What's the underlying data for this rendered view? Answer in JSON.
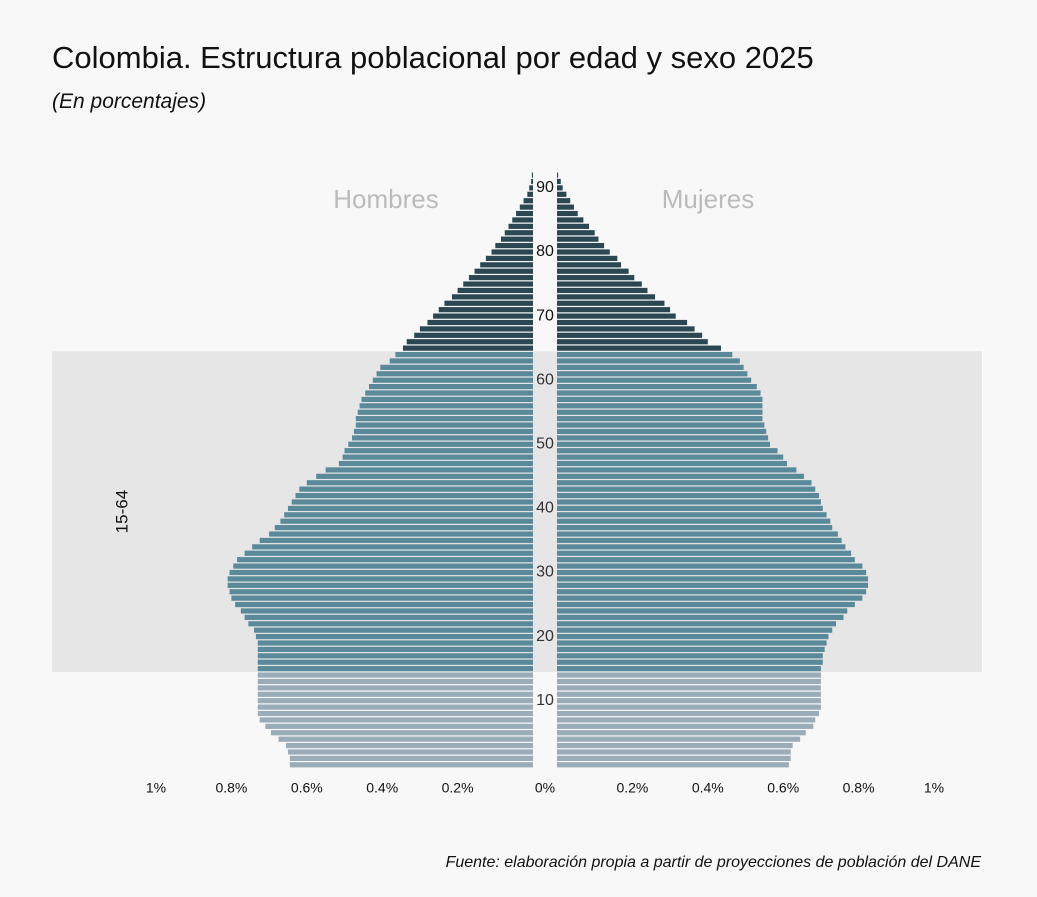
{
  "title": "Colombia. Estructura poblacional por edad y sexo 2025",
  "subtitle": "(En porcentajes)",
  "caption": "Fuente: elaboración propia a partir de proyecciones de población del DANE",
  "chart_data": {
    "type": "bar",
    "orientation": "horizontal",
    "subtype": "population-pyramid",
    "ages": [
      0,
      1,
      2,
      3,
      4,
      5,
      6,
      7,
      8,
      9,
      10,
      11,
      12,
      13,
      14,
      15,
      16,
      17,
      18,
      19,
      20,
      21,
      22,
      23,
      24,
      25,
      26,
      27,
      28,
      29,
      30,
      31,
      32,
      33,
      34,
      35,
      36,
      37,
      38,
      39,
      40,
      41,
      42,
      43,
      44,
      45,
      46,
      47,
      48,
      49,
      50,
      51,
      52,
      53,
      54,
      55,
      56,
      57,
      58,
      59,
      60,
      61,
      62,
      63,
      64,
      65,
      66,
      67,
      68,
      69,
      70,
      71,
      72,
      73,
      74,
      75,
      76,
      77,
      78,
      79,
      80,
      81,
      82,
      83,
      84,
      85,
      86,
      87,
      88,
      89,
      90,
      91,
      92
    ],
    "series": [
      {
        "name": "Hombres",
        "values": [
          0.645,
          0.645,
          0.65,
          0.655,
          0.675,
          0.695,
          0.71,
          0.725,
          0.73,
          0.73,
          0.73,
          0.73,
          0.73,
          0.73,
          0.73,
          0.73,
          0.73,
          0.73,
          0.73,
          0.73,
          0.735,
          0.74,
          0.755,
          0.765,
          0.775,
          0.79,
          0.8,
          0.805,
          0.81,
          0.81,
          0.805,
          0.795,
          0.785,
          0.765,
          0.745,
          0.725,
          0.7,
          0.685,
          0.67,
          0.66,
          0.65,
          0.64,
          0.63,
          0.62,
          0.6,
          0.575,
          0.55,
          0.515,
          0.505,
          0.5,
          0.49,
          0.48,
          0.475,
          0.47,
          0.47,
          0.465,
          0.46,
          0.455,
          0.445,
          0.435,
          0.425,
          0.415,
          0.405,
          0.38,
          0.365,
          0.345,
          0.335,
          0.315,
          0.3,
          0.28,
          0.265,
          0.25,
          0.235,
          0.215,
          0.2,
          0.185,
          0.17,
          0.155,
          0.14,
          0.125,
          0.11,
          0.1,
          0.085,
          0.075,
          0.065,
          0.055,
          0.045,
          0.035,
          0.025,
          0.015,
          0.01,
          0.005,
          0.003
        ]
      },
      {
        "name": "Mujeres",
        "values": [
          0.615,
          0.62,
          0.62,
          0.625,
          0.645,
          0.66,
          0.68,
          0.685,
          0.695,
          0.7,
          0.7,
          0.7,
          0.7,
          0.7,
          0.7,
          0.7,
          0.705,
          0.705,
          0.71,
          0.715,
          0.72,
          0.73,
          0.74,
          0.76,
          0.77,
          0.79,
          0.81,
          0.82,
          0.825,
          0.825,
          0.82,
          0.81,
          0.79,
          0.78,
          0.765,
          0.755,
          0.745,
          0.73,
          0.725,
          0.715,
          0.705,
          0.7,
          0.695,
          0.685,
          0.675,
          0.655,
          0.635,
          0.61,
          0.6,
          0.585,
          0.565,
          0.56,
          0.555,
          0.55,
          0.545,
          0.545,
          0.545,
          0.545,
          0.54,
          0.53,
          0.515,
          0.505,
          0.495,
          0.485,
          0.465,
          0.435,
          0.4,
          0.385,
          0.365,
          0.345,
          0.315,
          0.3,
          0.285,
          0.26,
          0.24,
          0.225,
          0.205,
          0.19,
          0.17,
          0.16,
          0.14,
          0.125,
          0.11,
          0.1,
          0.085,
          0.07,
          0.055,
          0.045,
          0.035,
          0.025,
          0.015,
          0.01,
          0.003
        ]
      }
    ],
    "age_group_colors": {
      "0-14": "#9aacb8",
      "15-64": "#5a8a9a",
      "65+": "#2b4852"
    },
    "highlight_band": {
      "ages": [
        15,
        64
      ],
      "label": "15-64",
      "color": "#e6e6e6"
    },
    "panel_labels": [
      "Hombres",
      "Mujeres"
    ],
    "age_ticks": [
      "10",
      "20",
      "30",
      "40",
      "50",
      "60",
      "70",
      "80",
      "90"
    ],
    "x_ticks": [
      "1%",
      "0.8%",
      "0.6%",
      "0.4%",
      "0.2%",
      "0%",
      "0.2%",
      "0.4%",
      "0.6%",
      "0.8%",
      "1%"
    ],
    "xlim": [
      -1,
      1
    ],
    "xlabel": "",
    "ylabel": ""
  }
}
